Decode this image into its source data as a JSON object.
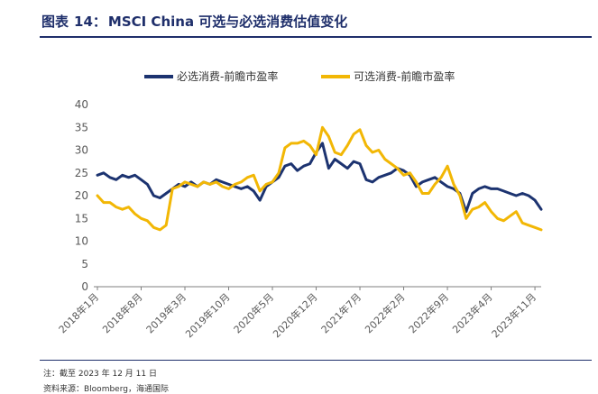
{
  "header": {
    "label": "图表",
    "number": "14：",
    "title": "MSCI China 可选与必选消费估值变化"
  },
  "footer": {
    "note": "注：截至 2023 年 12 月 11 日",
    "source": "资料来源：Bloomberg，海通国际"
  },
  "colors": {
    "title": "#1f2f6b",
    "rule": "#1f2f6b",
    "staples": "#1c3370",
    "discretionary": "#f2b705",
    "axis": "#7f7f7f"
  },
  "chart_data": {
    "type": "line",
    "title": "MSCI China 可选与必选消费估值变化",
    "xlabel": "",
    "ylabel": "",
    "ylim": [
      0,
      40
    ],
    "yticks": [
      0,
      5,
      10,
      15,
      20,
      25,
      30,
      35,
      40
    ],
    "xticks": [
      "2018年1月",
      "2018年8月",
      "2019年3月",
      "2019年10月",
      "2020年5月",
      "2020年12月",
      "2021年7月",
      "2022年2月",
      "2022年9月",
      "2023年4月",
      "2023年11月"
    ],
    "legend_position": "top",
    "x": [
      "2018-01",
      "2018-02",
      "2018-03",
      "2018-04",
      "2018-05",
      "2018-06",
      "2018-07",
      "2018-08",
      "2018-09",
      "2018-10",
      "2018-11",
      "2018-12",
      "2019-01",
      "2019-02",
      "2019-03",
      "2019-04",
      "2019-05",
      "2019-06",
      "2019-07",
      "2019-08",
      "2019-09",
      "2019-10",
      "2019-11",
      "2019-12",
      "2020-01",
      "2020-02",
      "2020-03",
      "2020-04",
      "2020-05",
      "2020-06",
      "2020-07",
      "2020-08",
      "2020-09",
      "2020-10",
      "2020-11",
      "2020-12",
      "2021-01",
      "2021-02",
      "2021-03",
      "2021-04",
      "2021-05",
      "2021-06",
      "2021-07",
      "2021-08",
      "2021-09",
      "2021-10",
      "2021-11",
      "2021-12",
      "2022-01",
      "2022-02",
      "2022-03",
      "2022-04",
      "2022-05",
      "2022-06",
      "2022-07",
      "2022-08",
      "2022-09",
      "2022-10",
      "2022-11",
      "2022-12",
      "2023-01",
      "2023-02",
      "2023-03",
      "2023-04",
      "2023-05",
      "2023-06",
      "2023-07",
      "2023-08",
      "2023-09",
      "2023-10",
      "2023-11",
      "2023-12"
    ],
    "series": [
      {
        "name": "必选消费-前瞻市盈率",
        "color": "#1c3370",
        "values": [
          24.5,
          25.0,
          24.0,
          23.5,
          24.5,
          24.0,
          24.5,
          23.5,
          22.5,
          20.0,
          19.5,
          20.5,
          21.5,
          22.5,
          22.0,
          23.0,
          22.0,
          23.0,
          22.5,
          23.5,
          23.0,
          22.5,
          22.0,
          21.5,
          22.0,
          21.0,
          19.0,
          22.0,
          23.0,
          24.0,
          26.5,
          27.0,
          25.5,
          26.5,
          27.0,
          29.5,
          31.5,
          26.0,
          28.0,
          27.0,
          26.0,
          27.5,
          27.0,
          23.5,
          23.0,
          24.0,
          24.5,
          25.0,
          26.0,
          25.5,
          24.5,
          22.0,
          23.0,
          23.5,
          24.0,
          23.0,
          22.0,
          21.5,
          20.5,
          16.5,
          20.5,
          21.5,
          22.0,
          21.5,
          21.5,
          21.0,
          20.5,
          20.0,
          20.5,
          20.0,
          19.0,
          17.0
        ]
      },
      {
        "name": "可选消费-前瞻市盈率",
        "color": "#f2b705",
        "values": [
          20.0,
          18.5,
          18.5,
          17.5,
          17.0,
          17.5,
          16.0,
          15.0,
          14.5,
          13.0,
          12.5,
          13.5,
          21.5,
          22.0,
          23.0,
          22.5,
          22.0,
          23.0,
          22.5,
          23.0,
          22.0,
          21.5,
          22.5,
          23.0,
          24.0,
          24.5,
          21.0,
          22.5,
          23.0,
          25.0,
          30.5,
          31.5,
          31.5,
          32.0,
          31.0,
          29.0,
          35.0,
          33.0,
          29.5,
          29.0,
          31.0,
          33.5,
          34.5,
          31.0,
          29.5,
          30.0,
          28.0,
          27.0,
          26.0,
          24.5,
          25.0,
          23.0,
          20.5,
          20.5,
          22.5,
          24.0,
          26.5,
          22.5,
          20.0,
          15.0,
          17.0,
          17.5,
          18.5,
          16.5,
          15.0,
          14.5,
          15.5,
          16.5,
          14.0,
          13.5,
          13.0,
          12.5
        ]
      }
    ]
  }
}
